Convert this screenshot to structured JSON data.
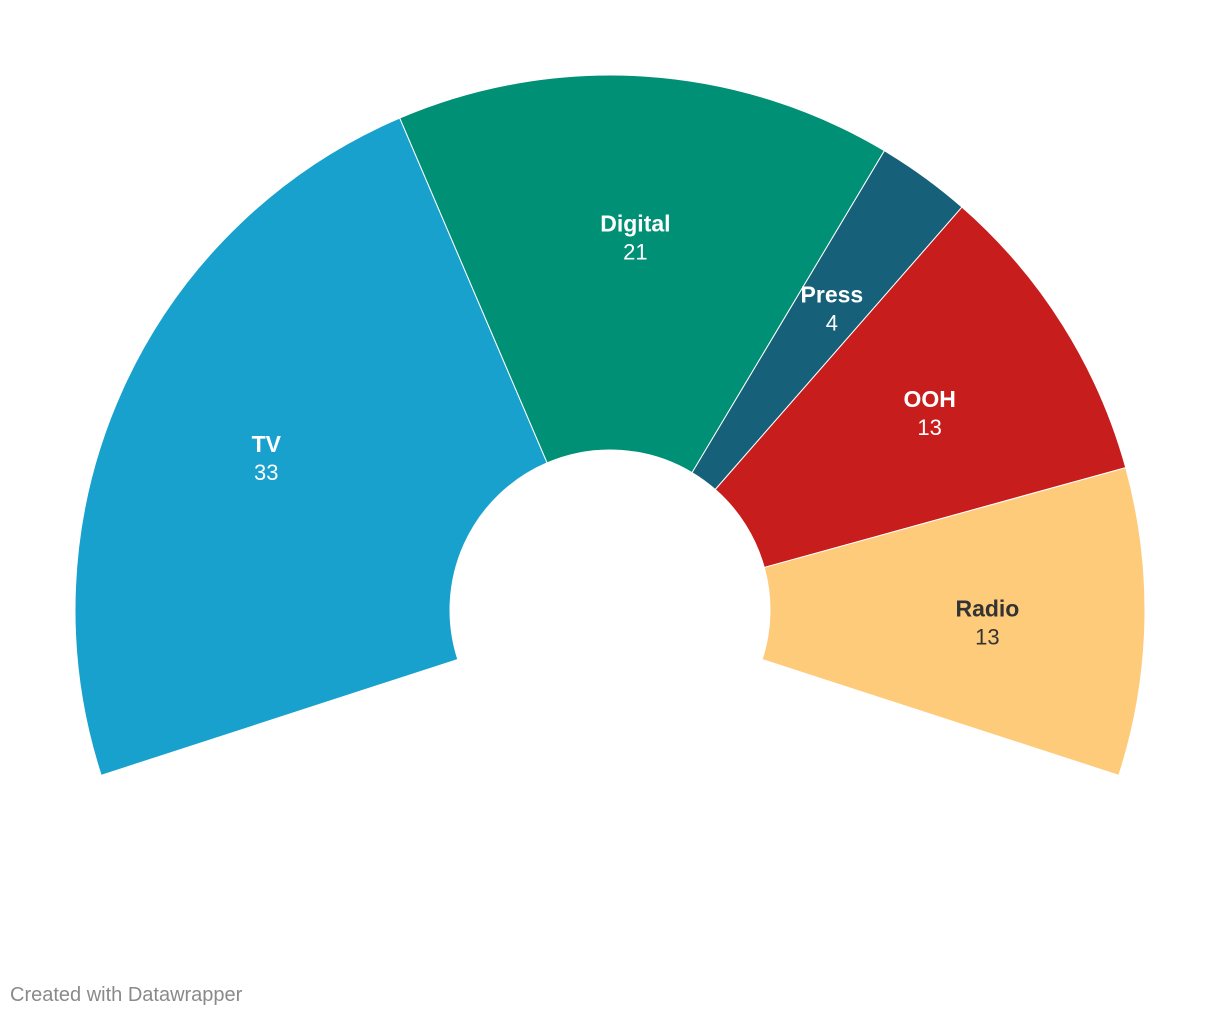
{
  "chart_data": {
    "type": "pie",
    "variant": "semi-donut",
    "title": "",
    "categories": [
      "TV",
      "Digital",
      "Press",
      "OOH",
      "Radio"
    ],
    "values": [
      33,
      21,
      4,
      13,
      13
    ],
    "colors": [
      "#18a1cd",
      "#009075",
      "#16607a",
      "#c71e1d",
      "#fecb7a"
    ],
    "label_colors": [
      "#ffffff",
      "#ffffff",
      "#ffffff",
      "#ffffff",
      "#333333"
    ],
    "legend": "none"
  },
  "footer": {
    "credit": "Created with Datawrapper"
  }
}
